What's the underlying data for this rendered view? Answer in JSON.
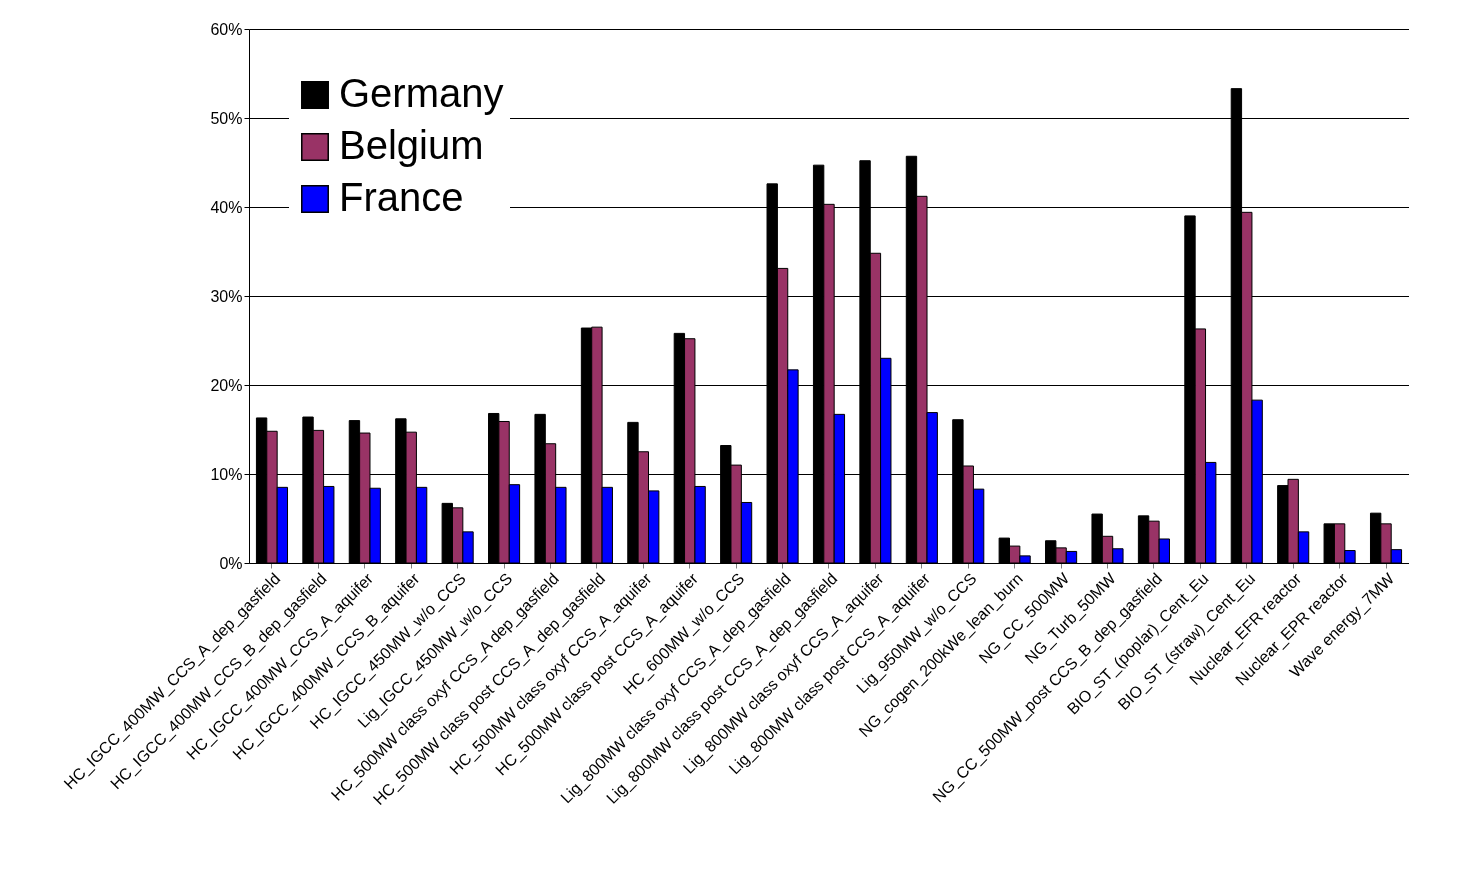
{
  "chart_data": {
    "type": "bar",
    "categories": [
      "HC_IGCC_400MW_CCS_A_dep_gasfield",
      "HC_IGCC_400MW_CCS_B_dep_gasfield",
      "HC_IGCC_400MW_CCS_A_aquifer",
      "HC_IGCC_400MW_CCS_B_aquifer",
      "HC_IGCC_450MW_w/o_CCS",
      "Lig_IGCC_450MW_w/o_CCS",
      "HC_500MW class oxyf CCS_A dep_gasfield",
      "HC_500MW class post CCS_A_dep_gasfield",
      "HC_500MW class oxyf CCS_A_aquifer",
      "HC_500MW class post CCS_A_aquifer",
      "HC_600MW_w/o_CCS",
      "Lig_800MW class oxyf CCS_A_dep_gasfield",
      "Lig_800MW class post CCS_A_dep_gasfield",
      "Lig_800MW class oxyf CCS_A_aquifer",
      "Lig_800MW class post CCS_A_aquifer",
      "Lig_950MW_w/o_CCS",
      "NG_cogen_200kWe_lean_burn",
      "NG_CC_500MW",
      "NG_Turb_50MW",
      "NG_CC_500MW_post CCS_B_dep_gasfield",
      "BIO_ST_(poplar)_Cent_Eu",
      "BIO_ST_(straw)_Cent_Eu",
      "Nuclear_EFR reactor",
      "Nuclear_EPR reactor",
      "Wave energy_7MW"
    ],
    "series": [
      {
        "name": "Germany",
        "color": "#000000",
        "values": [
          16.3,
          16.4,
          16.0,
          16.2,
          6.7,
          16.8,
          16.7,
          26.4,
          15.8,
          25.8,
          13.2,
          42.6,
          44.7,
          45.2,
          45.7,
          16.1,
          2.8,
          2.5,
          5.5,
          5.3,
          39.0,
          53.3,
          8.7,
          4.4,
          5.6
        ]
      },
      {
        "name": "Belgium",
        "color": "#993366",
        "values": [
          14.8,
          14.9,
          14.6,
          14.7,
          6.2,
          15.9,
          13.4,
          26.5,
          12.5,
          25.2,
          11.0,
          33.1,
          40.3,
          34.8,
          41.2,
          10.9,
          1.9,
          1.7,
          3.0,
          4.7,
          26.3,
          39.4,
          9.4,
          4.4,
          4.4
        ]
      },
      {
        "name": "France",
        "color": "#0000ff",
        "values": [
          8.5,
          8.6,
          8.4,
          8.5,
          3.5,
          8.8,
          8.5,
          8.5,
          8.1,
          8.6,
          6.8,
          21.7,
          16.7,
          23.0,
          16.9,
          8.3,
          0.8,
          1.3,
          1.6,
          2.7,
          11.3,
          18.3,
          3.5,
          1.4,
          1.5
        ]
      }
    ],
    "ylim": [
      0,
      60
    ],
    "yticks": [
      {
        "value": 0,
        "label": "0%"
      },
      {
        "value": 10,
        "label": "10%"
      },
      {
        "value": 20,
        "label": "20%"
      },
      {
        "value": 30,
        "label": "30%"
      },
      {
        "value": 40,
        "label": "40%"
      },
      {
        "value": 50,
        "label": "50%"
      },
      {
        "value": 60,
        "label": "60%"
      }
    ],
    "grid": "y",
    "legend": "top left"
  }
}
